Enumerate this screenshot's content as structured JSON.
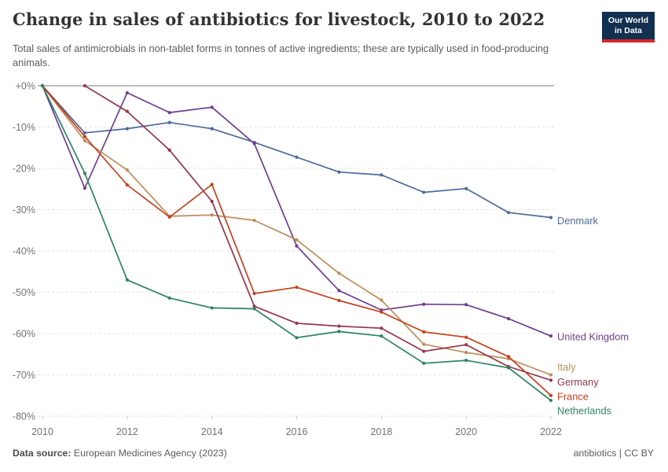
{
  "header": {
    "title": "Change in sales of antibiotics for livestock, 2010 to 2022",
    "subtitle": "Total sales of antimicrobials in non-tablet forms in tonnes of active ingredients; these are typically used in food-producing animals.",
    "logo": {
      "line1": "Our World",
      "line2": "in Data"
    }
  },
  "footer": {
    "source_label": "Data source:",
    "source_text": " European Medicines Agency (2023)",
    "credit": "antibiotics | CC BY"
  },
  "chart_data": {
    "type": "line",
    "title": "Change in sales of antibiotics for livestock, 2010 to 2022",
    "xlabel": "",
    "ylabel": "",
    "x": [
      2010,
      2011,
      2012,
      2013,
      2014,
      2015,
      2016,
      2017,
      2018,
      2019,
      2020,
      2021,
      2022
    ],
    "xlim": [
      2010,
      2022
    ],
    "ylim": [
      -80,
      0
    ],
    "grid": "horizontal-dashed",
    "legend_position": "right-edge-labels",
    "x_ticks": [
      {
        "year": 2010,
        "label": "2010"
      },
      {
        "year": 2012,
        "label": "2012"
      },
      {
        "year": 2014,
        "label": "2014"
      },
      {
        "year": 2016,
        "label": "2016"
      },
      {
        "year": 2018,
        "label": "2018"
      },
      {
        "year": 2020,
        "label": "2020"
      },
      {
        "year": 2022,
        "label": "2022"
      }
    ],
    "y_ticks": [
      {
        "v": 0,
        "label": "+0%"
      },
      {
        "v": -10,
        "label": "-10%"
      },
      {
        "v": -20,
        "label": "-20%"
      },
      {
        "v": -30,
        "label": "-30%"
      },
      {
        "v": -40,
        "label": "-40%"
      },
      {
        "v": -50,
        "label": "-50%"
      },
      {
        "v": -60,
        "label": "-60%"
      },
      {
        "v": -70,
        "label": "-70%"
      },
      {
        "v": -80,
        "label": "-80%"
      }
    ],
    "series": [
      {
        "name": "Denmark",
        "color": "#4C6A9C",
        "values": [
          0,
          -11.4,
          -10.4,
          -8.9,
          -10.4,
          -13.7,
          -17.3,
          -20.9,
          -21.6,
          -25.8,
          -24.9,
          -30.7,
          -31.9
        ]
      },
      {
        "name": "United Kingdom",
        "color": "#6D3E91",
        "values": [
          0,
          -24.8,
          -1.7,
          -6.5,
          -5.2,
          -14.0,
          -38.8,
          -49.6,
          -54.3,
          -52.9,
          -53.0,
          -56.4,
          -60.6
        ]
      },
      {
        "name": "Italy",
        "color": "#BC8E5A",
        "values": [
          0,
          -13.3,
          -20.4,
          -31.6,
          -31.3,
          -32.6,
          -37.3,
          -45.4,
          -51.9,
          -62.6,
          -64.6,
          -66.1,
          -70.0
        ]
      },
      {
        "name": "Germany",
        "color": "#94374A",
        "values": [
          null,
          0,
          -6.2,
          -15.6,
          -28.0,
          -53.4,
          -57.5,
          -58.2,
          -58.7,
          -64.3,
          -62.7,
          -68.0,
          -71.3
        ]
      },
      {
        "name": "France",
        "color": "#C5401D",
        "values": [
          0,
          -12.3,
          -24.0,
          -31.8,
          -23.9,
          -50.3,
          -48.8,
          -52.0,
          -54.8,
          -59.6,
          -60.9,
          -65.6,
          -75.0
        ]
      },
      {
        "name": "Netherlands",
        "color": "#2C8465",
        "values": [
          0,
          -21.2,
          -47.0,
          -51.4,
          -53.8,
          -54.0,
          -61.0,
          -59.5,
          -60.6,
          -67.2,
          -66.5,
          -68.3,
          -76.2
        ]
      }
    ]
  }
}
